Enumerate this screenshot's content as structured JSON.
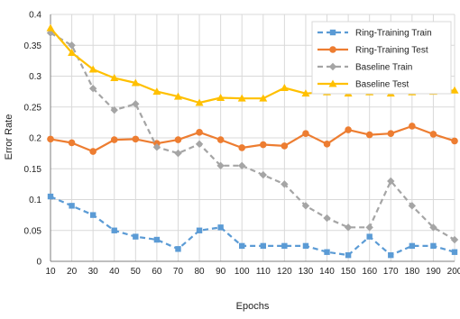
{
  "chart_data": {
    "type": "line",
    "title": "",
    "xlabel": "Epochs",
    "ylabel": "Error Rate",
    "x": [
      10,
      20,
      30,
      40,
      50,
      60,
      70,
      80,
      90,
      100,
      110,
      120,
      130,
      140,
      150,
      160,
      170,
      180,
      190,
      200
    ],
    "xlim": [
      10,
      200
    ],
    "ylim": [
      0,
      0.4
    ],
    "yticks": [
      "0",
      "0.05",
      "0.1",
      "0.15",
      "0.2",
      "0.25",
      "0.3",
      "0.35",
      "0.4"
    ],
    "grid": true,
    "legend_position": "top-right",
    "series": [
      {
        "name": "Ring-Training Train",
        "color": "#5b9bd5",
        "dash": "dashed",
        "marker": "square",
        "values": [
          0.105,
          0.09,
          0.075,
          0.05,
          0.04,
          0.035,
          0.02,
          0.05,
          0.055,
          0.025,
          0.025,
          0.025,
          0.025,
          0.015,
          0.01,
          0.04,
          0.01,
          0.025,
          0.025,
          0.015
        ]
      },
      {
        "name": "Ring-Training Test",
        "color": "#ed7d31",
        "dash": "solid",
        "marker": "circle",
        "values": [
          0.198,
          0.192,
          0.178,
          0.197,
          0.198,
          0.191,
          0.197,
          0.209,
          0.197,
          0.184,
          0.189,
          0.187,
          0.207,
          0.19,
          0.213,
          0.205,
          0.207,
          0.219,
          0.206,
          0.195
        ]
      },
      {
        "name": "Baseline Train",
        "color": "#a5a5a5",
        "dash": "dashed",
        "marker": "diamond",
        "values": [
          0.37,
          0.35,
          0.28,
          0.245,
          0.255,
          0.185,
          0.175,
          0.19,
          0.155,
          0.155,
          0.14,
          0.125,
          0.09,
          0.07,
          0.055,
          0.055,
          0.13,
          0.09,
          0.055,
          0.035
        ]
      },
      {
        "name": "Baseline Test",
        "color": "#ffc000",
        "dash": "solid",
        "marker": "triangle",
        "values": [
          0.378,
          0.338,
          0.311,
          0.297,
          0.289,
          0.275,
          0.267,
          0.257,
          0.265,
          0.264,
          0.264,
          0.281,
          0.272,
          0.274,
          0.272,
          0.274,
          0.272,
          0.274,
          0.275,
          0.277
        ]
      }
    ]
  }
}
